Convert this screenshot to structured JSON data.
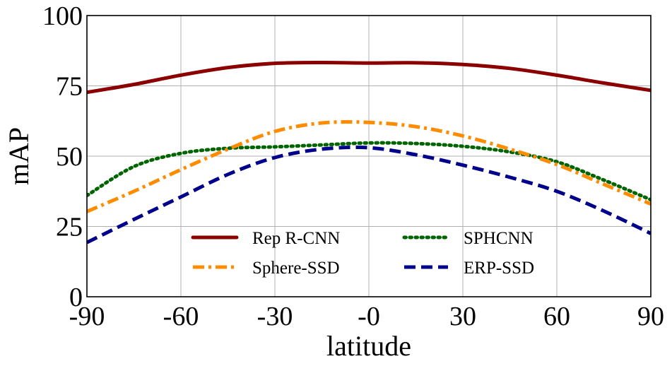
{
  "chart_data": {
    "type": "line",
    "title": "",
    "xlabel": "latitude",
    "ylabel": "mAP",
    "xlim": [
      -90,
      90
    ],
    "ylim": [
      0,
      100
    ],
    "x_ticks": [
      -90,
      -60,
      -30,
      0,
      30,
      60,
      90
    ],
    "x_tick_labels": [
      "-90",
      "-60",
      "-30",
      "-0",
      "30",
      "60",
      "90"
    ],
    "y_ticks": [
      0,
      25,
      50,
      75,
      100
    ],
    "y_tick_labels": [
      "0",
      "25",
      "50",
      "75",
      "100"
    ],
    "grid": true,
    "legend_position": "bottom-center",
    "x": [
      -90,
      -75,
      -60,
      -45,
      -30,
      -15,
      0,
      15,
      30,
      45,
      60,
      75,
      90
    ],
    "series": [
      {
        "name": "Rep R-CNN",
        "color": "#8B0000",
        "dash": "solid",
        "values": [
          72.7,
          75.5,
          78.8,
          81.5,
          83.0,
          83.3,
          83.1,
          83.2,
          82.6,
          81.2,
          78.8,
          76.0,
          73.4
        ]
      },
      {
        "name": "SPHCNN",
        "color": "#006400",
        "dash": "dotted",
        "values": [
          36,
          46.3,
          51.0,
          52.8,
          53.3,
          54.0,
          54.7,
          54.5,
          53.5,
          51.5,
          48.0,
          41.5,
          34.5
        ]
      },
      {
        "name": "Sphere-SSD",
        "color": "#FF8C00",
        "dash": "dashdot",
        "values": [
          30.3,
          37.5,
          45.2,
          52.5,
          58.8,
          61.8,
          62.0,
          60.5,
          57.2,
          52.5,
          47.0,
          40.0,
          33.0
        ]
      },
      {
        "name": "ERP-SSD",
        "color": "#00008B",
        "dash": "dashed",
        "values": [
          19.3,
          27.5,
          35.5,
          43.5,
          49.5,
          52.5,
          53.0,
          50.5,
          46.8,
          42.5,
          37.5,
          30.5,
          22.5
        ]
      }
    ],
    "legend_order": [
      0,
      1,
      2,
      3
    ]
  }
}
